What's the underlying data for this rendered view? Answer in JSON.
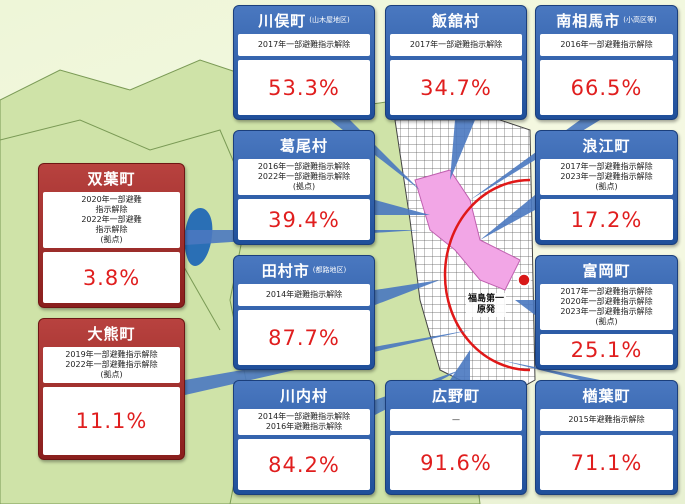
{
  "plant": {
    "lines": [
      "福島第一",
      "原発"
    ]
  },
  "municipalities": [
    {
      "name": "川俣町",
      "sub": "(山木屋地区)",
      "notes": [
        "2017年一部避難指示解除"
      ],
      "value": "53.3%"
    },
    {
      "name": "飯舘村",
      "notes": [
        "2017年一部避難指示解除"
      ],
      "value": "34.7%"
    },
    {
      "name": "南相馬市",
      "sub": "(小高区等)",
      "notes": [
        "2016年一部避難指示解除"
      ],
      "value": "66.5%"
    },
    {
      "name": "葛尾村",
      "notes": [
        "2016年一部避難指示解除",
        "2022年一部避難指示解除",
        "(拠点)"
      ],
      "value": "39.4%"
    },
    {
      "name": "浪江町",
      "notes": [
        "2017年一部避難指示解除",
        "2023年一部避難指示解除",
        "(拠点)"
      ],
      "value": "17.2%"
    },
    {
      "name": "双葉町",
      "notes": [
        "2020年一部避難",
        "指示解除",
        "2022年一部避難",
        "指示解除",
        "(拠点)"
      ],
      "value": "3.8%"
    },
    {
      "name": "田村市",
      "sub": "(都路地区)",
      "notes": [
        "2014年避難指示解除"
      ],
      "value": "87.7%"
    },
    {
      "name": "富岡町",
      "notes": [
        "2017年一部避難指示解除",
        "2020年一部避難指示解除",
        "2023年一部避難指示解除",
        "(拠点)"
      ],
      "value": "25.1%"
    },
    {
      "name": "大熊町",
      "notes": [
        "2019年一部避難指示解除",
        "2022年一部避難指示解除",
        "(拠点)"
      ],
      "value": "11.1%"
    },
    {
      "name": "川内村",
      "notes": [
        "2014年一部避難指示解除",
        "2016年避難指示解除"
      ],
      "value": "84.2%"
    },
    {
      "name": "広野町",
      "notes": [
        "—"
      ],
      "value": "91.6%"
    },
    {
      "name": "楢葉町",
      "notes": [
        "2015年避難指示解除"
      ],
      "value": "71.1%"
    }
  ]
}
